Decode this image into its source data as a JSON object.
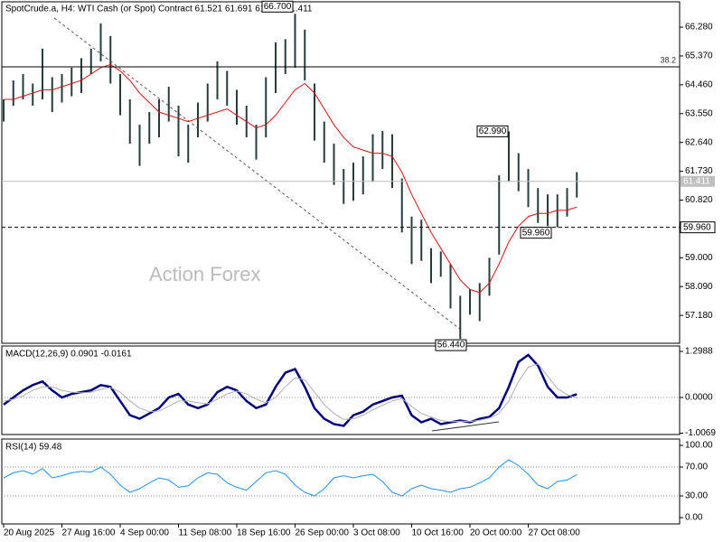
{
  "chart_data": [
    {
      "type": "range-bar",
      "title": "SpotCrude.a, H4:  WTI Cash (or Spot) Contract  61.521 61.691 61.391 61.411",
      "watermark": "Action Forex",
      "categories": [
        "20 Aug 2025",
        null,
        null,
        null,
        null,
        null,
        "27 Aug 16:00",
        null,
        null,
        null,
        null,
        null,
        "4 Sep 00:00",
        null,
        null,
        null,
        null,
        null,
        "11 Sep 08:00",
        null,
        null,
        null,
        null,
        null,
        "18 Sep 16:00",
        null,
        null,
        null,
        null,
        null,
        "26 Sep 00:00",
        null,
        null,
        null,
        null,
        null,
        "3 Oct 08:00",
        null,
        null,
        null,
        null,
        null,
        "10 Oct 16:00",
        null,
        null,
        null,
        null,
        null,
        "20 Oct 00:00",
        null,
        null,
        null,
        null,
        null,
        "27 Oct 08:00",
        null,
        null,
        null,
        null,
        null
      ],
      "color": "#253d3d",
      "high": [
        64.0,
        64.6,
        64.8,
        64.5,
        65.6,
        64.7,
        64.8,
        65.0,
        65.3,
        65.6,
        66.4,
        66.0,
        64.8,
        64.0,
        63.2,
        63.6,
        64.0,
        64.4,
        63.8,
        63.2,
        63.9,
        64.5,
        65.2,
        64.9,
        64.3,
        63.8,
        63.2,
        64.7,
        65.8,
        65.9,
        66.7,
        66.2,
        64.5,
        63.3,
        62.6,
        61.8,
        62.0,
        62.2,
        62.9,
        63.0,
        62.9,
        61.5,
        60.3,
        60.2,
        59.3,
        59.2,
        58.8,
        57.8,
        58.0,
        58.2,
        59.0,
        61.6,
        62.99,
        62.3,
        61.8,
        61.2,
        61.0,
        61.0,
        61.2,
        61.7
      ],
      "low": [
        63.3,
        63.8,
        64.0,
        63.8,
        64.0,
        63.6,
        63.9,
        64.1,
        64.2,
        64.8,
        65.2,
        64.5,
        63.5,
        62.6,
        61.9,
        62.6,
        62.8,
        63.3,
        62.2,
        62.0,
        62.8,
        63.3,
        64.0,
        63.8,
        63.2,
        62.8,
        62.1,
        62.8,
        64.2,
        64.8,
        65.0,
        64.6,
        62.7,
        62.0,
        61.3,
        60.7,
        60.8,
        61.0,
        61.4,
        61.8,
        61.2,
        59.8,
        58.8,
        58.9,
        58.2,
        58.4,
        57.4,
        56.44,
        57.2,
        57.0,
        57.8,
        59.1,
        61.4,
        61.1,
        60.6,
        60.1,
        60.0,
        59.96,
        60.3,
        60.9
      ],
      "series": [
        {
          "color": "#e01010",
          "values": [
            64.0,
            64.0,
            64.1,
            64.2,
            64.3,
            64.3,
            64.4,
            64.5,
            64.6,
            64.8,
            65.0,
            65.1,
            64.9,
            64.6,
            64.2,
            63.9,
            63.6,
            63.5,
            63.4,
            63.3,
            63.4,
            63.5,
            63.6,
            63.7,
            63.5,
            63.3,
            63.1,
            63.2,
            63.5,
            63.9,
            64.3,
            64.5,
            64.2,
            63.7,
            63.2,
            62.8,
            62.5,
            62.4,
            62.3,
            62.3,
            62.2,
            61.7,
            61.0,
            60.4,
            59.8,
            59.3,
            58.8,
            58.3,
            58.0,
            57.9,
            58.2,
            58.8,
            59.5,
            60.0,
            60.3,
            60.4,
            60.4,
            60.5,
            60.5,
            60.6
          ]
        }
      ],
      "hlines": [
        {
          "value": 65.025,
          "label": "38.2"
        },
        {
          "value": 61.411,
          "label": "61.411"
        },
        {
          "value": 59.96,
          "label": "59.960"
        }
      ],
      "annotations": [
        {
          "value": 66.7,
          "label": "66.700"
        },
        {
          "value": 62.99,
          "label": "62.990"
        },
        {
          "value": 59.96,
          "label": "59.960"
        },
        {
          "value": 56.44,
          "label": "56.440"
        }
      ],
      "ylim": [
        56.3,
        67.08
      ],
      "yticks": [
        {
          "value": 66.28,
          "label": "66.280"
        },
        {
          "value": 65.37,
          "label": "65.370"
        },
        {
          "value": 64.46,
          "label": "64.460"
        },
        {
          "value": 63.55,
          "label": "63.550"
        },
        {
          "value": 62.64,
          "label": "62.640"
        },
        {
          "value": 61.73,
          "label": "61.730"
        },
        {
          "value": 60.82,
          "label": "60.820"
        },
        {
          "value": 59.0,
          "label": "59.000"
        },
        {
          "value": 58.09,
          "label": "58.090"
        },
        {
          "value": 57.18,
          "label": "57.180"
        }
      ]
    },
    {
      "type": "line",
      "title": "MACD(12,26,9) 0.0901 -0.0161",
      "series": [
        {
          "color": "#000080",
          "values": [
            -0.2,
            0.0,
            0.2,
            0.35,
            0.45,
            0.2,
            0.0,
            0.1,
            0.15,
            0.2,
            0.35,
            0.3,
            -0.1,
            -0.5,
            -0.6,
            -0.45,
            -0.3,
            0.0,
            0.1,
            -0.2,
            -0.3,
            -0.2,
            0.15,
            0.3,
            0.2,
            -0.1,
            -0.3,
            -0.2,
            0.3,
            0.7,
            0.8,
            0.3,
            -0.3,
            -0.6,
            -0.75,
            -0.8,
            -0.5,
            -0.4,
            -0.2,
            -0.1,
            0.0,
            0.05,
            -0.5,
            -0.7,
            -0.6,
            -0.75,
            -0.7,
            -0.65,
            -0.7,
            -0.6,
            -0.55,
            -0.3,
            0.3,
            1.0,
            1.2,
            0.9,
            0.3,
            0.0,
            0.0,
            0.09
          ]
        },
        {
          "color": "#b0b0b0",
          "values": [
            -0.1,
            -0.05,
            0.05,
            0.2,
            0.3,
            0.3,
            0.2,
            0.15,
            0.13,
            0.15,
            0.23,
            0.28,
            0.15,
            -0.1,
            -0.3,
            -0.4,
            -0.38,
            -0.25,
            -0.1,
            -0.1,
            -0.15,
            -0.18,
            -0.05,
            0.1,
            0.18,
            0.1,
            -0.05,
            -0.15,
            0.0,
            0.3,
            0.55,
            0.5,
            0.15,
            -0.2,
            -0.45,
            -0.62,
            -0.6,
            -0.5,
            -0.35,
            -0.22,
            -0.1,
            -0.03,
            -0.25,
            -0.45,
            -0.55,
            -0.65,
            -0.68,
            -0.67,
            -0.68,
            -0.64,
            -0.58,
            -0.45,
            -0.1,
            0.45,
            0.85,
            0.95,
            0.6,
            0.25,
            0.08,
            -0.02
          ]
        }
      ],
      "levels": [
        0
      ],
      "ylim": [
        -1.044,
        1.4515
      ],
      "yticks": [
        1.2988,
        {
          "value": 0,
          "label": "0.0000"
        },
        -1.0069
      ]
    },
    {
      "type": "line",
      "title": "RSI(14) 59.48",
      "series": [
        {
          "color": "#1e90ff",
          "values": [
            55,
            62,
            65,
            60,
            68,
            55,
            58,
            62,
            64,
            63,
            70,
            60,
            45,
            35,
            40,
            48,
            55,
            52,
            42,
            44,
            55,
            62,
            60,
            48,
            42,
            38,
            50,
            62,
            65,
            60,
            45,
            35,
            30,
            40,
            55,
            58,
            55,
            58,
            60,
            50,
            35,
            30,
            40,
            45,
            40,
            38,
            35,
            40,
            42,
            48,
            55,
            70,
            80,
            72,
            60,
            45,
            40,
            50,
            52,
            59.48
          ]
        }
      ],
      "levels": [
        70,
        30
      ],
      "ylim": [
        -8.75,
        108.75
      ],
      "yticks": [
        {
          "value": 100,
          "label": "100.00"
        },
        {
          "value": 70,
          "label": "70.00"
        },
        {
          "value": 30,
          "label": "30.00"
        },
        {
          "value": 0,
          "label": "0.00"
        }
      ]
    }
  ]
}
